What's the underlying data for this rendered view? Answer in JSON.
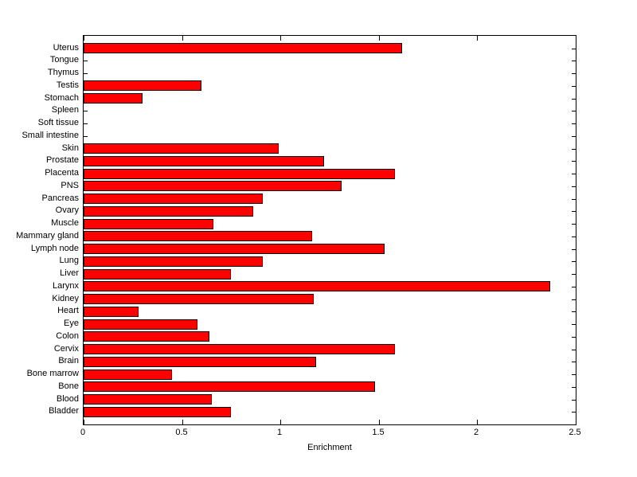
{
  "chart_data": {
    "type": "bar",
    "orientation": "horizontal",
    "title": "",
    "xlabel": "Enrichment",
    "ylabel": "",
    "xlim": [
      0,
      2.5
    ],
    "xticks": [
      0,
      0.5,
      1,
      1.5,
      2,
      2.5
    ],
    "xtick_labels": [
      "0",
      "0.5",
      "1",
      "1.5",
      "2",
      "2.5"
    ],
    "grid": false,
    "legend_position": "none",
    "bar_color": "#ff0000",
    "bar_edge_color": "#000000",
    "axis_color": "#000000",
    "background_color": "#ffffff",
    "category_order": "top-to-bottom",
    "categories": [
      "Uterus",
      "Tongue",
      "Thymus",
      "Testis",
      "Stomach",
      "Spleen",
      "Soft tissue",
      "Small intestine",
      "Skin",
      "Prostate",
      "Placenta",
      "PNS",
      "Pancreas",
      "Ovary",
      "Muscle",
      "Mammary gland",
      "Lymph node",
      "Lung",
      "Liver",
      "Larynx",
      "Kidney",
      "Heart",
      "Eye",
      "Colon",
      "Cervix",
      "Brain",
      "Bone marrow",
      "Bone",
      "Blood",
      "Bladder"
    ],
    "values": [
      1.62,
      0,
      0,
      0.6,
      0.3,
      0,
      0,
      0,
      0.99,
      1.22,
      1.58,
      1.31,
      0.91,
      0.86,
      0.66,
      1.16,
      1.53,
      0.91,
      0.75,
      2.37,
      1.17,
      0.28,
      0.58,
      0.64,
      1.58,
      1.18,
      0.45,
      1.48,
      0.65,
      0.75
    ]
  }
}
